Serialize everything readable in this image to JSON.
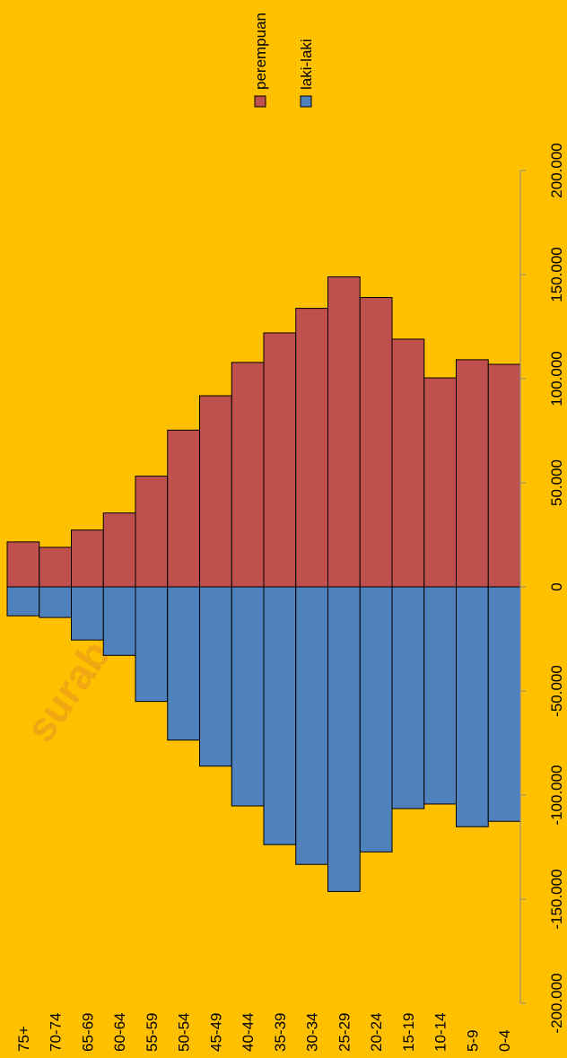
{
  "chart_data": {
    "type": "bar",
    "orientation": "rotated",
    "watermark": "surabayakota.bps.go.id",
    "categories": [
      "75+",
      "70-74",
      "65-69",
      "60-64",
      "55-59",
      "50-54",
      "45-49",
      "40-44",
      "35-39",
      "30-34",
      "25-29",
      "20-24",
      "15-19",
      "10-14",
      "5-9",
      "0-4"
    ],
    "series": [
      {
        "name": "perempuan",
        "color": "#c0504d",
        "values": [
          21600,
          19000,
          27300,
          35500,
          53200,
          75300,
          91800,
          107800,
          122000,
          133800,
          148900,
          139000,
          119000,
          100400,
          109100,
          106900
        ]
      },
      {
        "name": "laki-laki",
        "color": "#4f81bd",
        "values": [
          -13900,
          -14700,
          -25500,
          -32900,
          -55000,
          -73600,
          -86100,
          -105200,
          -123800,
          -133300,
          -146300,
          -127300,
          -106500,
          -104300,
          -115200,
          -112600
        ]
      }
    ],
    "ylim": [
      -200000,
      200000
    ],
    "yticks": [
      {
        "value": -200000,
        "label": "-200.000"
      },
      {
        "value": -150000,
        "label": "-150.000"
      },
      {
        "value": -100000,
        "label": "-100.000"
      },
      {
        "value": -50000,
        "label": "-50.000"
      },
      0,
      {
        "value": 50000,
        "label": "50.000"
      },
      {
        "value": 100000,
        "label": "100.000"
      },
      {
        "value": 150000,
        "label": "150.000"
      },
      {
        "value": 200000,
        "label": "200.000"
      }
    ],
    "legend": "top-right"
  }
}
